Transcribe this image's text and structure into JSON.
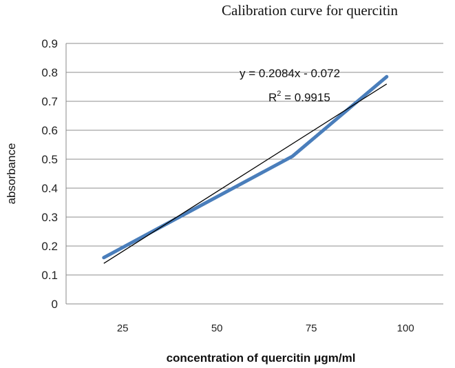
{
  "chart_data": {
    "type": "line",
    "title": "Calibration  curve  for  quercitin",
    "xlabel": "concentration  of quercitin μgm/ml",
    "ylabel": "absorbance",
    "ylim": [
      0,
      0.9
    ],
    "y_ticks": [
      "0",
      "0.1",
      "0.2",
      "0.3",
      "0.4",
      "0.5",
      "0.6",
      "0.7",
      "0.8",
      "0.9"
    ],
    "x_ticks": [
      "25",
      "50",
      "75",
      "100"
    ],
    "grid": true,
    "series": [
      {
        "x": [
          20,
          40,
          70,
          80,
          95
        ],
        "values": [
          0.16,
          0.3,
          0.51,
          0.62,
          0.785
        ],
        "color": "#4a7ebb"
      }
    ],
    "trendline": {
      "x_range": [
        20,
        95
      ],
      "y_range": [
        0.14,
        0.76
      ],
      "color": "#000000"
    },
    "annotations": {
      "equation": "y = 0.2084x - 0.072",
      "r_squared_label": "R",
      "r_squared_exp": "2",
      "r_squared_value": " = 0.9915"
    }
  }
}
